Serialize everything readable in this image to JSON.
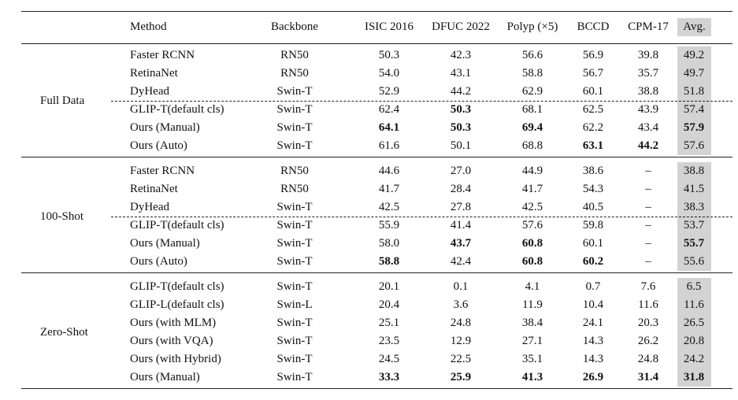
{
  "columns": [
    "Method",
    "Backbone",
    "ISIC 2016",
    "DFUC 2022",
    "Polyp (×5)",
    "BCCD",
    "CPM-17",
    "Avg."
  ],
  "groups": [
    {
      "name": "Full Data",
      "rows": [
        {
          "method": "Faster RCNN",
          "backbone": "RN50",
          "values": [
            "50.3",
            "42.3",
            "56.6",
            "56.9",
            "39.8"
          ],
          "avg": "49.2"
        },
        {
          "method": "RetinaNet",
          "backbone": "RN50",
          "values": [
            "54.0",
            "43.1",
            "58.8",
            "56.7",
            "35.7"
          ],
          "avg": "49.7"
        },
        {
          "method": "DyHead",
          "backbone": "Swin-T",
          "values": [
            "52.9",
            "44.2",
            "62.9",
            "60.1",
            "38.8"
          ],
          "avg": "51.8"
        },
        {
          "method": "GLIP-T(default cls)",
          "backbone": "Swin-T",
          "values": [
            "62.4",
            "50.3",
            "68.1",
            "62.5",
            "43.9"
          ],
          "avg": "57.4",
          "bold": [
            1
          ]
        },
        {
          "method": "Ours (Manual)",
          "backbone": "Swin-T",
          "values": [
            "64.1",
            "50.3",
            "69.4",
            "62.2",
            "43.4"
          ],
          "avg": "57.9",
          "bold": [
            0,
            1,
            2,
            5
          ]
        },
        {
          "method": "Ours (Auto)",
          "backbone": "Swin-T",
          "values": [
            "61.6",
            "50.1",
            "68.8",
            "63.1",
            "44.2"
          ],
          "avg": "57.6",
          "bold": [
            3,
            4
          ]
        }
      ]
    },
    {
      "name": "100-Shot",
      "rows": [
        {
          "method": "Faster RCNN",
          "backbone": "RN50",
          "values": [
            "44.6",
            "27.0",
            "44.9",
            "38.6",
            "–"
          ],
          "avg": "38.8"
        },
        {
          "method": "RetinaNet",
          "backbone": "RN50",
          "values": [
            "41.7",
            "28.4",
            "41.7",
            "54.3",
            "–"
          ],
          "avg": "41.5"
        },
        {
          "method": "DyHead",
          "backbone": "Swin-T",
          "values": [
            "42.5",
            "27.8",
            "42.5",
            "40.5",
            "–"
          ],
          "avg": "38.3"
        },
        {
          "method": "GLIP-T(default cls)",
          "backbone": "Swin-T",
          "values": [
            "55.9",
            "41.4",
            "57.6",
            "59.8",
            "–"
          ],
          "avg": "53.7"
        },
        {
          "method": "Ours (Manual)",
          "backbone": "Swin-T",
          "values": [
            "58.0",
            "43.7",
            "60.8",
            "60.1",
            "–"
          ],
          "avg": "55.7",
          "bold": [
            1,
            2,
            5
          ]
        },
        {
          "method": "Ours (Auto)",
          "backbone": "Swin-T",
          "values": [
            "58.8",
            "42.4",
            "60.8",
            "60.2",
            "–"
          ],
          "avg": "55.6",
          "bold": [
            0,
            2,
            3
          ]
        }
      ]
    },
    {
      "name": "Zero-Shot",
      "rows": [
        {
          "method": "GLIP-T(default cls)",
          "backbone": "Swin-T",
          "values": [
            "20.1",
            "0.1",
            "4.1",
            "0.7",
            "7.6"
          ],
          "avg": "6.5"
        },
        {
          "method": "GLIP-L(default cls)",
          "backbone": "Swin-L",
          "values": [
            "20.4",
            "3.6",
            "11.9",
            "10.4",
            "11.6"
          ],
          "avg": "11.6"
        },
        {
          "method": "Ours (with MLM)",
          "backbone": "Swin-T",
          "values": [
            "25.1",
            "24.8",
            "38.4",
            "24.1",
            "20.3"
          ],
          "avg": "26.5"
        },
        {
          "method": "Ours (with VQA)",
          "backbone": "Swin-T",
          "values": [
            "23.5",
            "12.9",
            "27.1",
            "14.3",
            "26.2"
          ],
          "avg": "20.8"
        },
        {
          "method": "Ours (with Hybrid)",
          "backbone": "Swin-T",
          "values": [
            "24.5",
            "22.5",
            "35.1",
            "14.3",
            "24.8"
          ],
          "avg": "24.2"
        },
        {
          "method": "Ours (Manual)",
          "backbone": "Swin-T",
          "values": [
            "33.3",
            "25.9",
            "41.3",
            "26.9",
            "31.4"
          ],
          "avg": "31.8",
          "bold": [
            0,
            1,
            2,
            3,
            4,
            5
          ]
        }
      ]
    }
  ]
}
